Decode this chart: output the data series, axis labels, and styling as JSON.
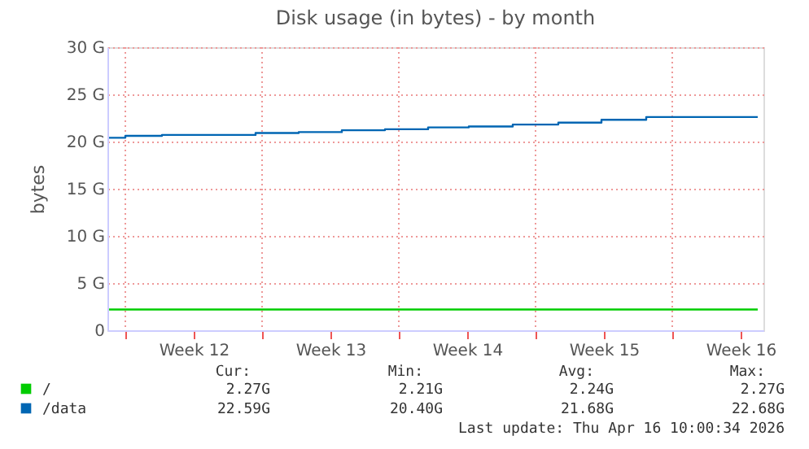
{
  "chart_data": {
    "type": "step",
    "title": "Disk usage (in bytes) - by month",
    "ylabel": "bytes",
    "xlim": [
      "2026-03-15T02:00",
      "2026-04-17T16:00"
    ],
    "ylim": [
      0,
      30
    ],
    "xticks": [
      {
        "value": "2026-03-16",
        "label": null
      },
      {
        "value": "2026-03-19T12:00",
        "label": "Week 12"
      },
      {
        "value": "2026-03-23",
        "label": null
      },
      {
        "value": "2026-03-26T12:00",
        "label": "Week 13"
      },
      {
        "value": "2026-03-30",
        "label": null
      },
      {
        "value": "2026-04-02T12:00",
        "label": "Week 14"
      },
      {
        "value": "2026-04-06",
        "label": null
      },
      {
        "value": "2026-04-09T12:00",
        "label": "Week 15"
      },
      {
        "value": "2026-04-13",
        "label": null
      },
      {
        "value": "2026-04-16T12:00",
        "label": "Week 16"
      }
    ],
    "yticks": [
      0,
      {
        "value": 5,
        "label": "5 G"
      },
      {
        "value": 10,
        "label": "10 G"
      },
      {
        "value": 15,
        "label": "15 G"
      },
      {
        "value": 20,
        "label": "20 G"
      },
      {
        "value": 25,
        "label": "25 G"
      },
      {
        "value": 30,
        "label": "30 G"
      }
    ],
    "grid": true,
    "legend": "bottom left",
    "series": [
      {
        "name": "/",
        "color": "#00cc00",
        "x": [
          "2026-03-15T04:00",
          "2026-04-17T09:00"
        ],
        "values": [
          2.2,
          2.2
        ]
      },
      {
        "name": "/data",
        "color": "#0066b3",
        "x": [
          "2026-03-15T04:00",
          "2026-03-16",
          "2026-03-17T21:00",
          "2026-03-22T16:00",
          "2026-03-24T21:00",
          "2026-03-27T02:00",
          "2026-03-29T07:00",
          "2026-03-31T12:00",
          "2026-04-02T14:00",
          "2026-04-04T20:00",
          "2026-04-07T04:00",
          "2026-04-09T09:00",
          "2026-04-11T16:00",
          "2026-04-17T09:00"
        ],
        "values": [
          20.4,
          20.6,
          20.7,
          20.9,
          21.0,
          21.2,
          21.3,
          21.5,
          21.6,
          21.8,
          22.0,
          22.3,
          22.6,
          22.6
        ]
      }
    ],
    "annotations": [
      "Cur:",
      "Min:",
      "Avg:",
      "Max:",
      "2.27G",
      "2.21G",
      "2.24G",
      "2.27G",
      "22.59G",
      "20.40G",
      "21.68G",
      "22.68G",
      "Last update: Thu Apr 16 10:00:34 2026"
    ]
  }
}
